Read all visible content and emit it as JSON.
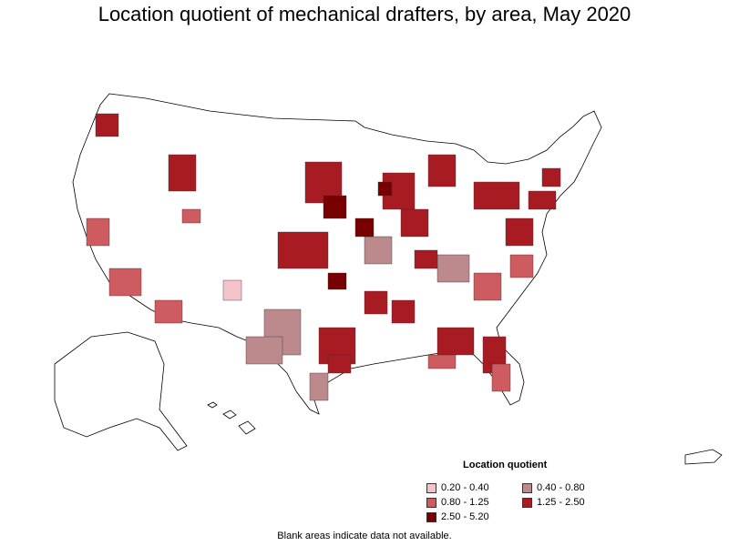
{
  "title": "Location quotient of mechanical drafters, by area, May 2020",
  "note": "Blank areas indicate data not available.",
  "legend": {
    "title": "Location quotient",
    "items": [
      {
        "label": "0.20 - 0.40",
        "color": "#f4c2cb"
      },
      {
        "label": "0.40 - 0.80",
        "color": "#bc8a8c"
      },
      {
        "label": "0.80 - 1.25",
        "color": "#cd5b60"
      },
      {
        "label": "1.25 - 2.50",
        "color": "#a81b22"
      },
      {
        "label": "2.50 - 5.20",
        "color": "#780000"
      }
    ]
  },
  "chart_data": {
    "type": "choropleth",
    "title": "Location quotient of mechanical drafters, by area, May 2020",
    "legend_title": "Location quotient",
    "bins": [
      "0.20 - 0.40",
      "0.40 - 0.80",
      "0.80 - 1.25",
      "1.25 - 2.50",
      "2.50 - 5.20"
    ],
    "note": "Blank areas indicate data not available."
  }
}
